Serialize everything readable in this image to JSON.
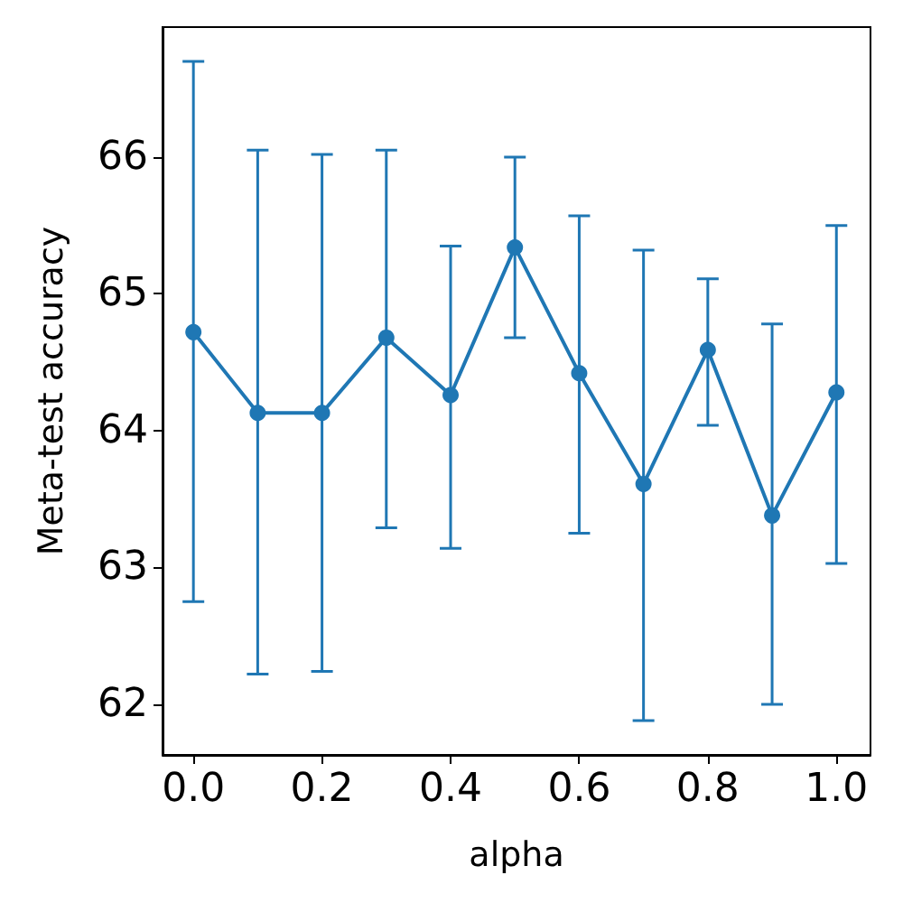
{
  "chart_data": {
    "type": "line",
    "xlabel": "alpha",
    "ylabel": "Meta-test accuracy",
    "x": [
      0.0,
      0.1,
      0.2,
      0.3,
      0.4,
      0.5,
      0.6,
      0.7,
      0.8,
      0.9,
      1.0
    ],
    "series": [
      {
        "color": "#1f77b4",
        "values": [
          64.72,
          64.13,
          64.13,
          64.68,
          64.26,
          65.34,
          64.42,
          63.61,
          64.59,
          63.38,
          64.28
        ],
        "errors": [
          [
            62.75,
            66.7
          ],
          [
            62.22,
            66.05
          ],
          [
            62.24,
            66.02
          ],
          [
            63.29,
            66.05
          ],
          [
            63.14,
            65.35
          ],
          [
            64.68,
            66.0
          ],
          [
            63.25,
            65.57
          ],
          [
            61.88,
            65.32
          ],
          [
            64.04,
            65.11
          ],
          [
            62.0,
            64.78
          ],
          [
            63.03,
            65.5
          ]
        ]
      }
    ],
    "xlim": [
      -0.048,
      1.053
    ],
    "ylim": [
      61.63,
      66.95
    ],
    "xticks": [
      {
        "value": 0,
        "label": "0.0"
      },
      {
        "value": 0.2,
        "label": "0.2"
      },
      {
        "value": 0.4,
        "label": "0.4"
      },
      {
        "value": 0.6,
        "label": "0.6"
      },
      {
        "value": 0.8,
        "label": "0.8"
      },
      {
        "value": 1.0,
        "label": "1.0"
      }
    ],
    "yticks": [
      62,
      63,
      64,
      65,
      66
    ],
    "grid": false,
    "marker": "circle",
    "line_style": "solid"
  }
}
